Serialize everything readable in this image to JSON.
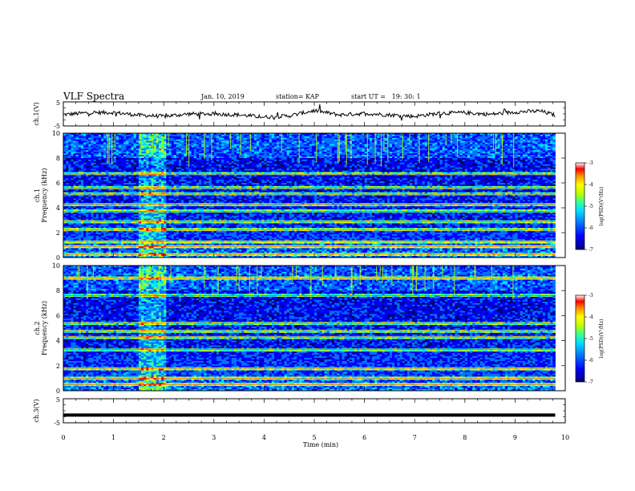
{
  "header": {
    "title": "VLF Spectra",
    "date": "Jan. 10, 2019",
    "station": "station= KAP",
    "start": "start UT =   19: 30: 1"
  },
  "colors": {
    "colormap": [
      "#00007a",
      "#0000ff",
      "#0070ff",
      "#00e0ff",
      "#40ff90",
      "#c0ff00",
      "#ffff00",
      "#ff9000",
      "#ff0000",
      "#ffffff"
    ]
  },
  "chart_data": [
    {
      "type": "line",
      "panel": "ch.1 waveform",
      "ylabel": "ch.1(V)",
      "ylim": [
        -5,
        5
      ],
      "yticks": [
        "5",
        "-5"
      ],
      "xlim": [
        0,
        10
      ],
      "x": [
        0,
        0.5,
        1,
        1.5,
        2,
        2.5,
        3,
        3.5,
        4,
        4.5,
        5,
        5.5,
        6,
        6.5,
        7,
        7.5,
        8,
        8.5,
        9,
        9.5,
        9.8
      ],
      "values": [
        -0.3,
        0.5,
        0.6,
        -0.5,
        -1.0,
        0.0,
        0.0,
        -0.4,
        -1.3,
        -0.8,
        1.4,
        -0.4,
        0.2,
        -0.4,
        -1.0,
        0.3,
        0.5,
        -0.2,
        0.8,
        1.2,
        -0.5
      ]
    },
    {
      "type": "heatmap",
      "panel": "ch.1 spectrogram",
      "ylabel": "Frequency (kHz)",
      "channel_label": "ch.1",
      "ylim": [
        0,
        10
      ],
      "yticks": [
        "0",
        "2",
        "4",
        "6",
        "8",
        "10"
      ],
      "xlim": [
        0,
        9.8
      ],
      "colorbar_label": "log(PSD)(V²/Hz)",
      "colorbar_range": [
        -7,
        -3
      ],
      "colorbar_ticks": [
        "-3",
        "-4",
        "-5",
        "-6",
        "-7"
      ],
      "bands_kHz": [
        0.3,
        0.9,
        1.3,
        2.2,
        2.9,
        3.7,
        4.3,
        5.1,
        5.6,
        6.7
      ],
      "highlight_interval_min": [
        1.5,
        2.0
      ]
    },
    {
      "type": "heatmap",
      "panel": "ch.2 spectrogram",
      "ylabel": "Frequency (kHz)",
      "channel_label": "ch.2",
      "ylim": [
        0,
        10
      ],
      "yticks": [
        "0",
        "2",
        "4",
        "6",
        "8",
        "10"
      ],
      "xlim": [
        0,
        9.8
      ],
      "colorbar_label": "log(PSD)(V²/Hz)",
      "colorbar_range": [
        -7,
        -3
      ],
      "colorbar_ticks": [
        "-3",
        "-4",
        "-5",
        "-6",
        "-7"
      ],
      "bands_kHz": [
        0.5,
        1.0,
        1.8,
        3.3,
        4.3,
        4.8,
        5.4,
        7.6,
        9.0
      ],
      "highlight_interval_min": [
        1.5,
        2.0
      ]
    },
    {
      "type": "line",
      "panel": "ch.3 waveform",
      "ylabel": "ch.3(V)",
      "ylim": [
        -5,
        5
      ],
      "yticks": [
        "5",
        "-5"
      ],
      "xlim": [
        0,
        10
      ],
      "x": [
        0,
        9.8
      ],
      "values": [
        -1.8,
        -1.8
      ]
    }
  ],
  "x_axis": {
    "title": "Time (min)",
    "ticks": [
      "0",
      "1",
      "2",
      "3",
      "4",
      "5",
      "6",
      "7",
      "8",
      "9",
      "10"
    ]
  }
}
